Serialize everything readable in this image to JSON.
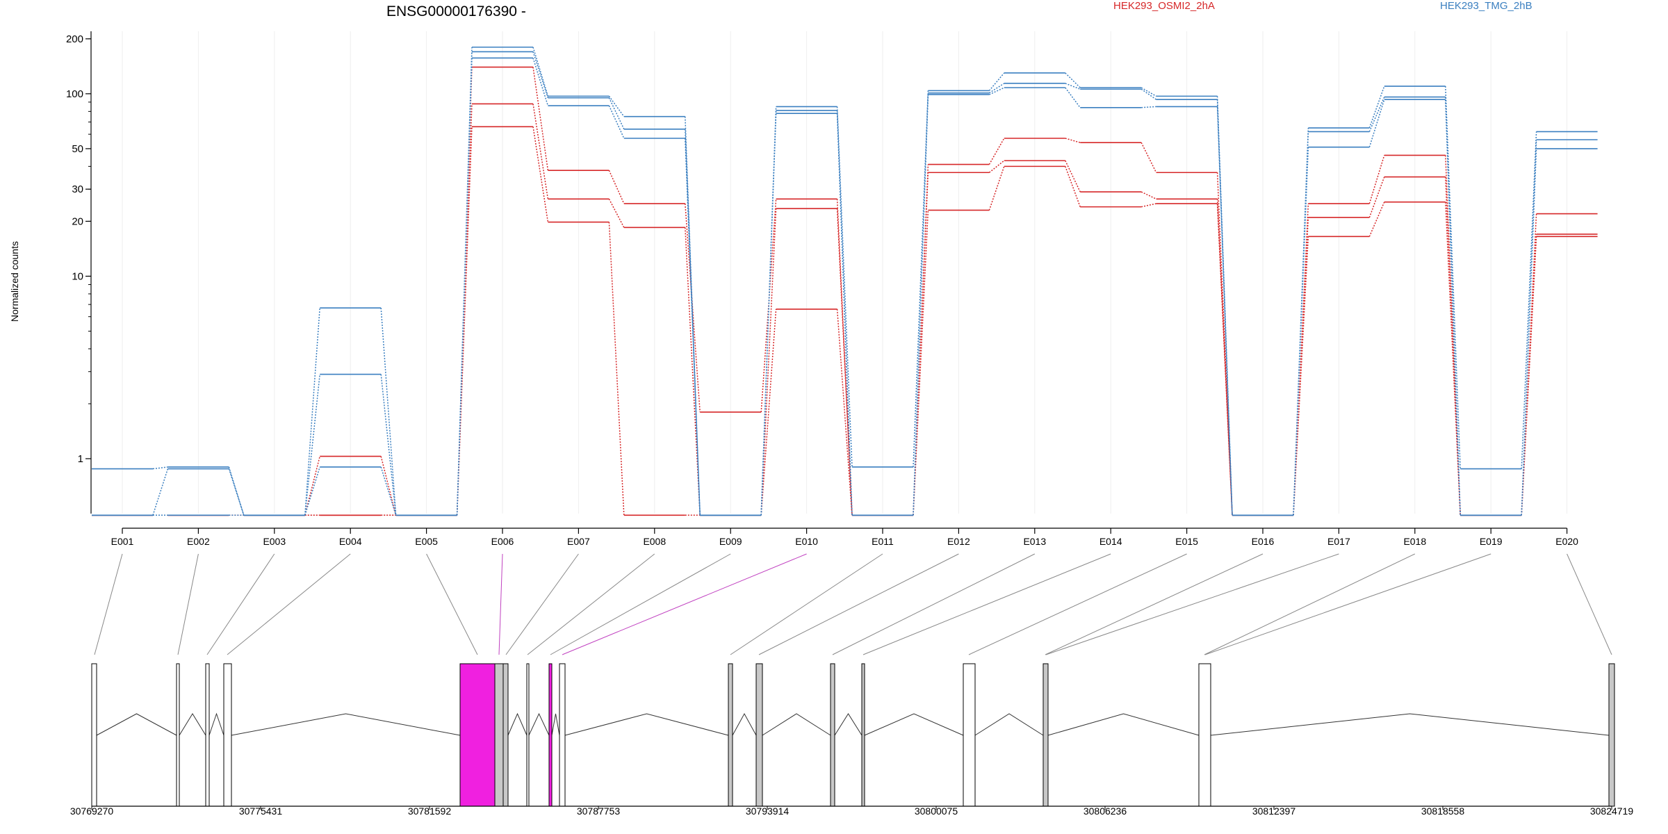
{
  "title": "ENSG00000176390 -",
  "ylabel": "Normalized counts",
  "legend": [
    {
      "name": "HEK293_OSMI2_2hA",
      "color": "#d62728"
    },
    {
      "name": "HEK293_TMG_2hB",
      "color": "#3a7fc0"
    }
  ],
  "chart_data": {
    "type": "line",
    "title": "ENSG00000176390 -",
    "xlabel": "",
    "ylabel": "Normalized counts",
    "yscale": "log",
    "ylim": [
      0.5,
      220
    ],
    "y_ticks": [
      1,
      10,
      20,
      30,
      50,
      100,
      200
    ],
    "categories": [
      "E001",
      "E002",
      "E003",
      "E004",
      "E005",
      "E006",
      "E007",
      "E008",
      "E009",
      "E010",
      "E011",
      "E012",
      "E013",
      "E014",
      "E015",
      "E016",
      "E017",
      "E018",
      "E019",
      "E020"
    ],
    "series": [
      {
        "group": "HEK293_OSMI2_2hA",
        "color": "#d62728",
        "values": [
          0.49,
          0.49,
          0.49,
          1.03,
          0.49,
          140,
          38,
          25,
          1.8,
          26.5,
          0.49,
          41,
          57,
          54,
          37,
          0.49,
          25,
          46,
          0.49,
          22
        ]
      },
      {
        "group": "HEK293_OSMI2_2hA",
        "color": "#d62728",
        "values": [
          0.49,
          0.49,
          0.49,
          0.49,
          0.49,
          88,
          26.5,
          18.5,
          0.49,
          23.5,
          0.49,
          37,
          43,
          29,
          26.5,
          0.49,
          21,
          35,
          0.49,
          17
        ]
      },
      {
        "group": "HEK293_OSMI2_2hA",
        "color": "#d62728",
        "values": [
          0.49,
          0.49,
          0.49,
          0.49,
          0.49,
          66,
          19.8,
          0.49,
          0.49,
          6.6,
          0.49,
          23,
          40,
          24,
          25,
          0.49,
          16.5,
          25.5,
          0.49,
          16.5
        ]
      },
      {
        "group": "HEK293_TMG_2hB",
        "color": "#3a7fc0",
        "values": [
          0.88,
          0.9,
          0.49,
          6.7,
          0.49,
          180,
          97,
          75,
          0.49,
          85,
          0.9,
          104,
          130,
          108,
          97,
          0.49,
          65,
          110,
          0.88,
          62
        ]
      },
      {
        "group": "HEK293_TMG_2hB",
        "color": "#3a7fc0",
        "values": [
          0.49,
          0.88,
          0.49,
          2.9,
          0.49,
          170,
          95,
          64,
          0.49,
          81,
          0.49,
          101,
          114,
          106,
          93,
          0.49,
          62,
          96,
          0.49,
          56
        ]
      },
      {
        "group": "HEK293_TMG_2hB",
        "color": "#3a7fc0",
        "values": [
          0.49,
          0.49,
          0.49,
          0.9,
          0.49,
          157,
          86,
          57,
          0.49,
          78,
          0.49,
          99,
          108,
          84,
          85,
          0.49,
          51,
          93,
          0.49,
          50
        ]
      }
    ],
    "highlighted_exons": [
      "E006",
      "E010"
    ]
  },
  "gene_model": {
    "coordinate_labels": [
      "30769270",
      "30775431",
      "30781592",
      "30787753",
      "30793914",
      "30800075",
      "30806236",
      "30812397",
      "30818558",
      "30824719"
    ],
    "highlight_color": "#f020e0",
    "exon_fill": "#c8c8c8"
  }
}
